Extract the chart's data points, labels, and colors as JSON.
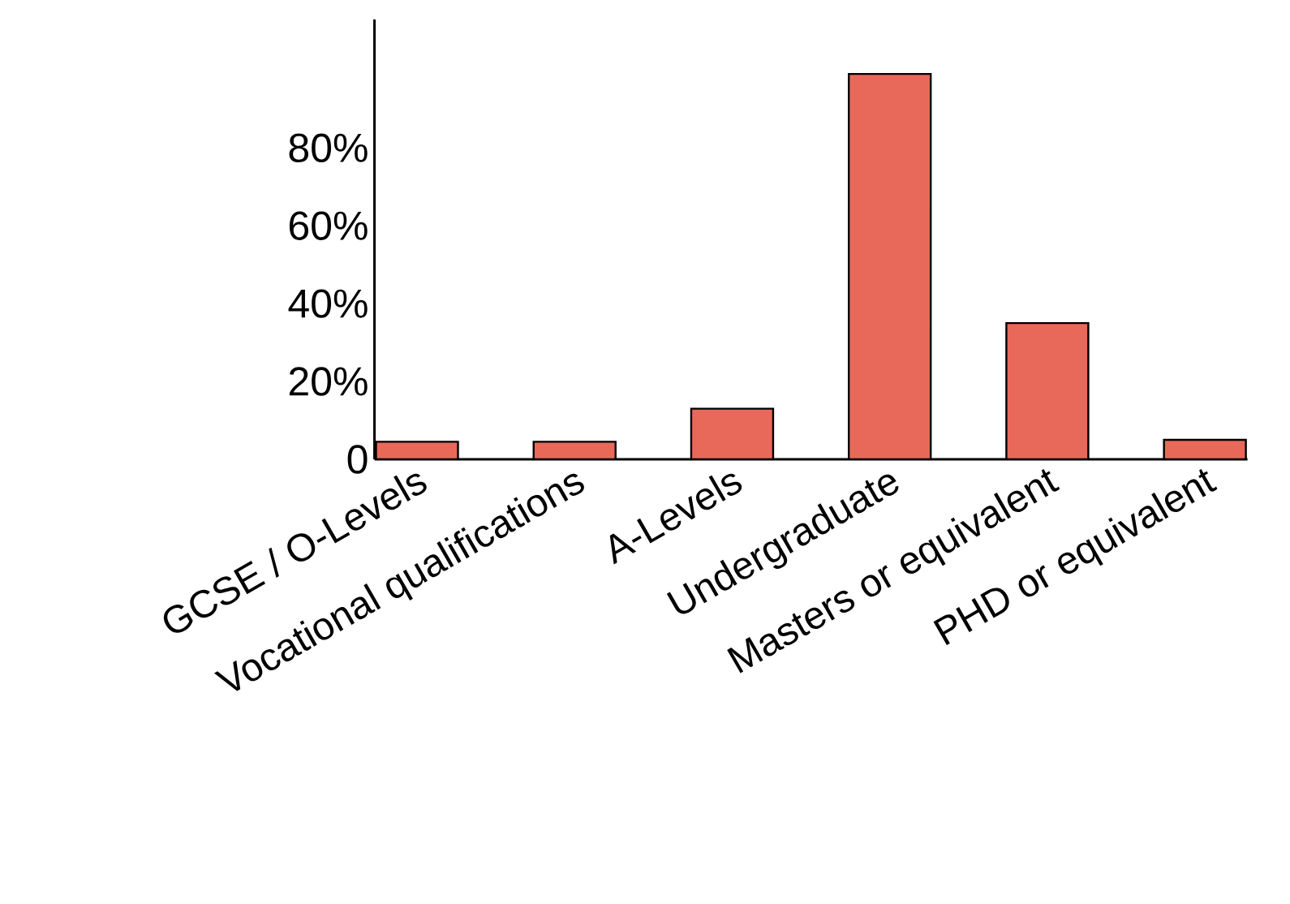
{
  "chart_data": {
    "type": "bar",
    "categories": [
      "GCSE / O-Levels",
      "Vocational qualifications",
      "A-Levels",
      "Undergraduate",
      "Masters or equivalent",
      "PHD or equivalent"
    ],
    "values": [
      4.5,
      4.5,
      13,
      99,
      35,
      5
    ],
    "color": "#e8695a",
    "ylim": [
      0,
      113
    ],
    "yticks": [
      {
        "value": 0,
        "label": "0"
      },
      {
        "value": 20,
        "label": "20%"
      },
      {
        "value": 40,
        "label": "40%"
      },
      {
        "value": 60,
        "label": "60%"
      },
      {
        "value": 80,
        "label": "80%"
      }
    ],
    "grid": false
  }
}
